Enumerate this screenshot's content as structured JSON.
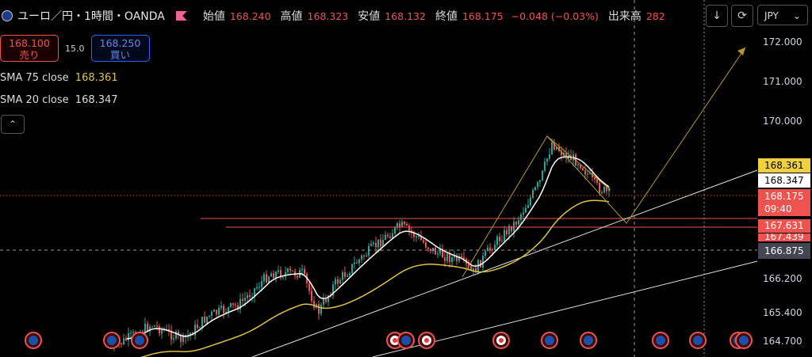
{
  "header": {
    "symbol": "ユーロ／円・1時間・OANDA",
    "open_label": "始値",
    "open": "168.240",
    "high_label": "高値",
    "high": "168.323",
    "low_label": "安値",
    "low": "168.132",
    "close_label": "終値",
    "close": "168.175",
    "change": "−0.048 (−0.03%)",
    "volume_label": "出来高",
    "volume": "282"
  },
  "trade": {
    "sell_price": "168.100",
    "sell_label": "売り",
    "spread": "15.0",
    "buy_price": "168.250",
    "buy_label": "買い"
  },
  "indicators": {
    "sma75_label": "SMA 75 close",
    "sma75_value": "168.361",
    "sma20_label": "SMA 20 close",
    "sma20_value": "168.347"
  },
  "toolbar": {
    "currency": "JPY",
    "currency_arrow": "⌄"
  },
  "axis": {
    "ticks": [
      "172.000",
      "171.000",
      "170.000",
      "166.200",
      "165.400",
      "164.700"
    ]
  },
  "price_tags": {
    "sma75": "168.361",
    "sma20": "168.347",
    "last": "168.175",
    "countdown": "09:40",
    "level1": "167.631",
    "level2": "167.439",
    "crosshair": "166.875"
  },
  "colors": {
    "up": "#26a69a",
    "down": "#ef5350",
    "sma75": "#e0c341",
    "sma20": "#ffffff",
    "accent": "#2962ff"
  }
}
